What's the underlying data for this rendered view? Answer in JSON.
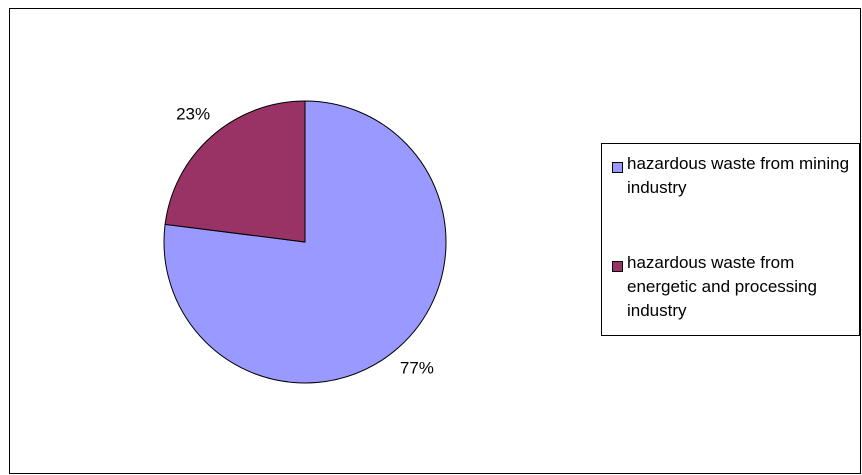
{
  "chart_data": {
    "type": "pie",
    "series": [
      {
        "name": "hazardous waste from mining industry",
        "color": "#9999ff",
        "values": [
          77
        ],
        "value_labels": [
          "77%"
        ]
      },
      {
        "name": "hazardous waste from energetic and processing industry",
        "color": "#993366",
        "values": [
          23
        ],
        "value_labels": [
          "23%"
        ]
      }
    ],
    "legend": "right"
  }
}
